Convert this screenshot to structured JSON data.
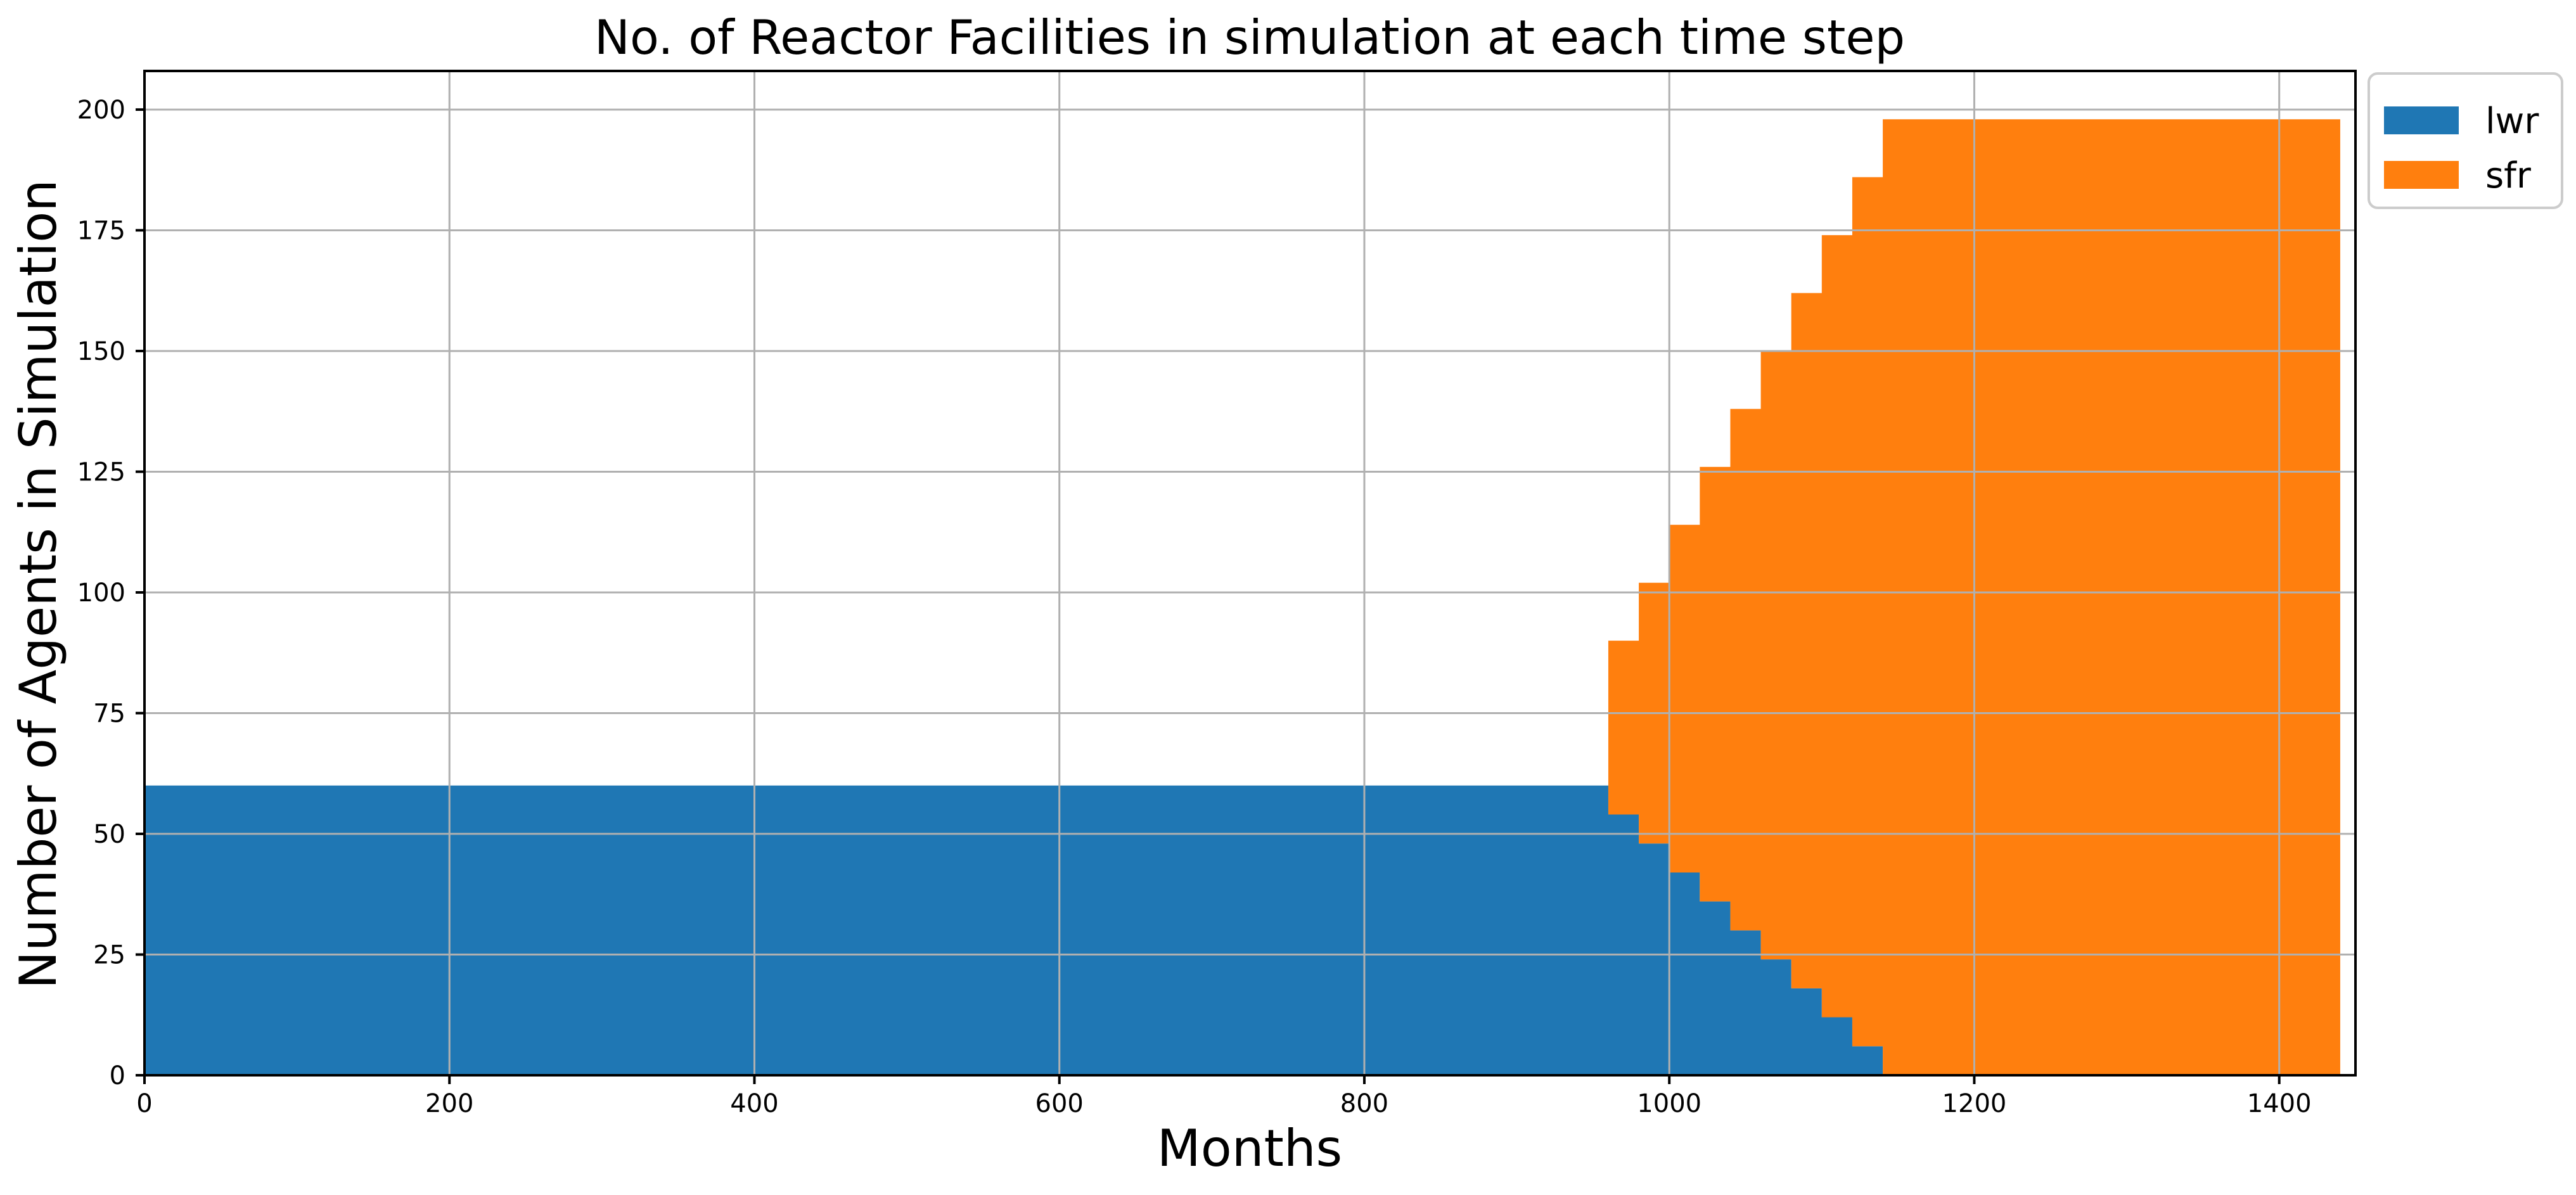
{
  "chart_data": {
    "type": "area",
    "title": "No. of Reactor Facilities in simulation at each time step",
    "xlabel": "Months",
    "ylabel": "Number of Agents in Simulation",
    "xlim": [
      0,
      1450
    ],
    "ylim": [
      0,
      208
    ],
    "xticks": [
      0,
      200,
      400,
      600,
      800,
      1000,
      1200,
      1400
    ],
    "yticks": [
      0,
      25,
      50,
      75,
      100,
      125,
      150,
      175,
      200
    ],
    "grid": true,
    "stacked": true,
    "step": true,
    "legend_position": "outside-top-right",
    "series": [
      {
        "name": "lwr",
        "color": "#1f77b4",
        "points": [
          [
            0,
            60
          ],
          [
            960,
            60
          ],
          [
            960,
            54
          ],
          [
            980,
            54
          ],
          [
            980,
            48
          ],
          [
            1000,
            48
          ],
          [
            1000,
            42
          ],
          [
            1020,
            42
          ],
          [
            1020,
            36
          ],
          [
            1040,
            36
          ],
          [
            1040,
            30
          ],
          [
            1060,
            30
          ],
          [
            1060,
            24
          ],
          [
            1080,
            24
          ],
          [
            1080,
            18
          ],
          [
            1100,
            18
          ],
          [
            1100,
            12
          ],
          [
            1120,
            12
          ],
          [
            1120,
            6
          ],
          [
            1140,
            6
          ],
          [
            1140,
            0
          ],
          [
            1440,
            0
          ]
        ]
      },
      {
        "name": "sfr",
        "color": "#ff7f0e",
        "points": [
          [
            0,
            0
          ],
          [
            960,
            0
          ],
          [
            960,
            36
          ],
          [
            980,
            36
          ],
          [
            980,
            54
          ],
          [
            1000,
            54
          ],
          [
            1000,
            72
          ],
          [
            1020,
            72
          ],
          [
            1020,
            90
          ],
          [
            1040,
            90
          ],
          [
            1040,
            108
          ],
          [
            1060,
            108
          ],
          [
            1060,
            126
          ],
          [
            1080,
            126
          ],
          [
            1080,
            144
          ],
          [
            1100,
            144
          ],
          [
            1100,
            162
          ],
          [
            1120,
            162
          ],
          [
            1120,
            180
          ],
          [
            1140,
            180
          ],
          [
            1140,
            198
          ],
          [
            1440,
            198
          ]
        ]
      }
    ]
  }
}
